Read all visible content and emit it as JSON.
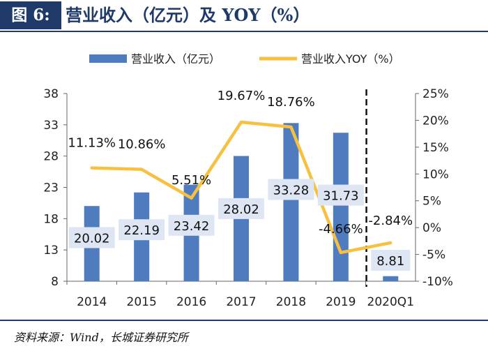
{
  "title": {
    "figure_label": "图 6:",
    "text": "营业收入（亿元）及 YOY（%）"
  },
  "source_note": "资料来源：Wind，长城证券研究所",
  "colors": {
    "bar": "#4f7cbf",
    "line": "#f7c03e",
    "title_bg": "#1f3a68",
    "label_box": "#dde6f2"
  },
  "chart_data": {
    "type": "bar+line",
    "categories": [
      "2014",
      "2015",
      "2016",
      "2017",
      "2018",
      "2019",
      "2020Q1"
    ],
    "series": [
      {
        "name": "营业收入（亿元）",
        "type": "bar",
        "axis": "left",
        "values": [
          20.02,
          22.19,
          23.42,
          28.02,
          33.28,
          31.73,
          8.81
        ],
        "labels": [
          "20.02",
          "22.19",
          "23.42",
          "28.02",
          "33.28",
          "31.73",
          "8.81"
        ]
      },
      {
        "name": "营业收入YOY（%）",
        "type": "line",
        "axis": "right",
        "values": [
          11.13,
          10.86,
          5.51,
          19.67,
          18.76,
          -4.66,
          -2.84
        ],
        "labels": [
          "11.13%",
          "10.86%",
          "5.51%",
          "19.67%",
          "18.76%",
          "-4.66%",
          "-2.84%"
        ]
      }
    ],
    "left_axis": {
      "ylim": [
        8,
        38
      ],
      "ticks": [
        8,
        13,
        18,
        23,
        28,
        33,
        38
      ],
      "tick_labels": [
        "8",
        "13",
        "18",
        "23",
        "28",
        "33",
        "38"
      ]
    },
    "right_axis": {
      "ylim": [
        -10,
        25
      ],
      "ticks": [
        -10,
        -5,
        0,
        5,
        10,
        15,
        20,
        25
      ],
      "tick_labels": [
        "-10%",
        "-5%",
        "0%",
        "5%",
        "10%",
        "15%",
        "20%",
        "25%"
      ]
    },
    "divider_before": "2020Q1",
    "legend_position": "top-center"
  }
}
